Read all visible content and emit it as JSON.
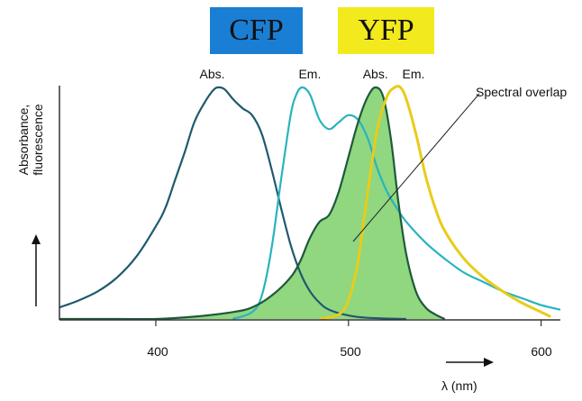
{
  "chart_data": {
    "type": "line",
    "xlabel": "λ (nm)",
    "ylabel": [
      "Absorbance,",
      "fluorescence"
    ],
    "xlim": [
      350,
      610
    ],
    "ylim": [
      0,
      1
    ],
    "ticks": [
      400,
      500,
      600
    ],
    "grid": false,
    "annotation": "Spectral overlap",
    "boxes": [
      {
        "label": "CFP",
        "color": "#1a7fd4"
      },
      {
        "label": "YFP",
        "color": "#f2ea1c"
      }
    ],
    "series": [
      {
        "name": "CFP Abs.",
        "color": "#1f5a6e",
        "peak_x": 433,
        "x": [
          350,
          360,
          370,
          380,
          390,
          400,
          405,
          410,
          415,
          420,
          425,
          430,
          433,
          436,
          440,
          445,
          450,
          455,
          460,
          465,
          470,
          475,
          480,
          485,
          490,
          500,
          510,
          530
        ],
        "y": [
          0.05,
          0.08,
          0.12,
          0.18,
          0.27,
          0.4,
          0.48,
          0.6,
          0.72,
          0.85,
          0.93,
          0.99,
          1.0,
          0.99,
          0.95,
          0.91,
          0.88,
          0.8,
          0.65,
          0.48,
          0.32,
          0.2,
          0.12,
          0.07,
          0.04,
          0.015,
          0.005,
          0.0
        ]
      },
      {
        "name": "CFP Em.",
        "color": "#2ab3c0",
        "peak_x": 476,
        "x": [
          440,
          450,
          455,
          460,
          465,
          470,
          473,
          476,
          480,
          485,
          490,
          495,
          500,
          505,
          510,
          515,
          520,
          525,
          530,
          540,
          550,
          560,
          570,
          580,
          590,
          600,
          610
        ],
        "y": [
          0.0,
          0.03,
          0.1,
          0.3,
          0.6,
          0.88,
          0.97,
          1.0,
          0.97,
          0.86,
          0.82,
          0.85,
          0.88,
          0.86,
          0.78,
          0.65,
          0.55,
          0.48,
          0.42,
          0.33,
          0.26,
          0.2,
          0.16,
          0.12,
          0.09,
          0.06,
          0.04
        ]
      },
      {
        "name": "YFP Abs.",
        "color": "#1d5a3a",
        "fill": "#7dd06a",
        "peak_x": 514,
        "x": [
          350,
          380,
          400,
          420,
          440,
          450,
          460,
          470,
          475,
          480,
          485,
          490,
          495,
          500,
          505,
          510,
          514,
          518,
          522,
          526,
          530,
          535,
          540,
          545,
          550
        ],
        "y": [
          0.0,
          0.0,
          0.0,
          0.01,
          0.03,
          0.05,
          0.1,
          0.18,
          0.25,
          0.35,
          0.42,
          0.45,
          0.55,
          0.7,
          0.85,
          0.96,
          1.0,
          0.96,
          0.78,
          0.5,
          0.28,
          0.12,
          0.05,
          0.02,
          0.0
        ]
      },
      {
        "name": "YFP Em.",
        "color": "#e8cc1a",
        "peak_x": 527,
        "x": [
          485,
          495,
          500,
          505,
          510,
          515,
          520,
          524,
          527,
          530,
          535,
          540,
          545,
          550,
          560,
          570,
          580,
          590,
          600,
          605
        ],
        "y": [
          0.0,
          0.02,
          0.08,
          0.25,
          0.55,
          0.82,
          0.96,
          1.0,
          1.0,
          0.95,
          0.8,
          0.62,
          0.48,
          0.38,
          0.26,
          0.18,
          0.12,
          0.07,
          0.03,
          0.01
        ]
      }
    ],
    "curve_labels": [
      {
        "text": "Abs.",
        "series": "CFP Abs."
      },
      {
        "text": "Em.",
        "series": "CFP Em."
      },
      {
        "text": "Abs.",
        "series": "YFP Abs."
      },
      {
        "text": "Em.",
        "series": "YFP Em."
      }
    ]
  }
}
